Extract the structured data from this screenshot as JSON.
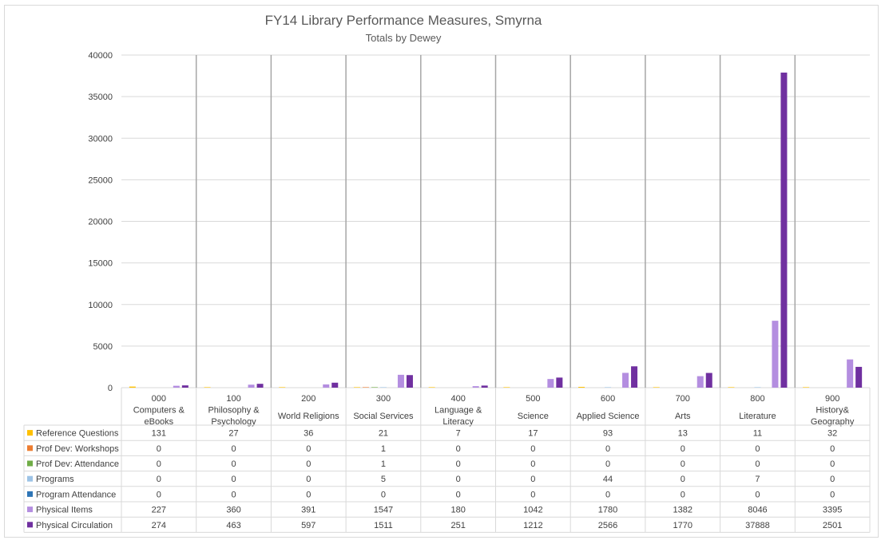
{
  "chart_data": {
    "type": "bar",
    "title": "FY14 Library Performance Measures, Smyrna",
    "subtitle": "Totals by Dewey",
    "ylim": [
      0,
      40000
    ],
    "yticks": [
      0,
      5000,
      10000,
      15000,
      20000,
      25000,
      30000,
      35000,
      40000
    ],
    "grid": true,
    "legend": "data-table",
    "categories": [
      [
        "000",
        "Computers &",
        "eBooks"
      ],
      [
        "100",
        "Philosophy &",
        "Psychology"
      ],
      [
        "200",
        "World Religions"
      ],
      [
        "300",
        "Social Services"
      ],
      [
        "400",
        "Language &",
        "Literacy"
      ],
      [
        "500",
        "Science"
      ],
      [
        "600",
        "Applied Science"
      ],
      [
        "700",
        "Arts"
      ],
      [
        "800",
        "Literature"
      ],
      [
        "900",
        "History&",
        "Geography"
      ]
    ],
    "series": [
      {
        "name": "Reference Questions",
        "color": "#ffc000",
        "values": [
          131,
          27,
          36,
          21,
          7,
          17,
          93,
          13,
          11,
          32
        ]
      },
      {
        "name": "Prof Dev: Workshops",
        "color": "#ed7d31",
        "values": [
          0,
          0,
          0,
          1,
          0,
          0,
          0,
          0,
          0,
          0
        ]
      },
      {
        "name": "Prof Dev: Attendance",
        "color": "#70ad47",
        "values": [
          0,
          0,
          0,
          1,
          0,
          0,
          0,
          0,
          0,
          0
        ]
      },
      {
        "name": "Programs",
        "color": "#9dc3e6",
        "values": [
          0,
          0,
          0,
          5,
          0,
          0,
          44,
          0,
          7,
          0
        ]
      },
      {
        "name": "Program Attendance",
        "color": "#2e75b6",
        "values": [
          0,
          0,
          0,
          0,
          0,
          0,
          0,
          0,
          0,
          0
        ]
      },
      {
        "name": "Physical Items",
        "color": "#b48ee0",
        "values": [
          227,
          360,
          391,
          1547,
          180,
          1042,
          1780,
          1382,
          8046,
          3395
        ]
      },
      {
        "name": "Physical Circulation",
        "color": "#7030a0",
        "values": [
          274,
          463,
          597,
          1511,
          251,
          1212,
          2566,
          1770,
          37888,
          2501
        ]
      }
    ]
  }
}
